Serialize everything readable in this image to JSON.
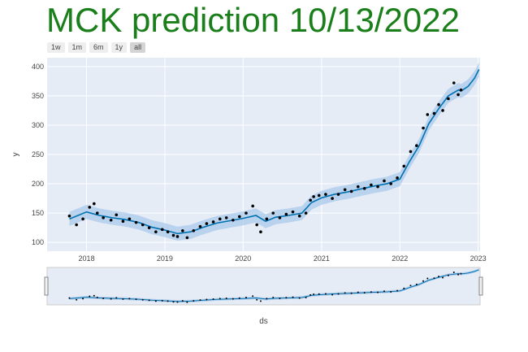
{
  "title": "MCK prediction 10/13/2022",
  "range_buttons": [
    {
      "label": "1w",
      "active": false
    },
    {
      "label": "1m",
      "active": false
    },
    {
      "label": "6m",
      "active": false
    },
    {
      "label": "1y",
      "active": false
    },
    {
      "label": "all",
      "active": true
    }
  ],
  "colors": {
    "title": "#1a7f1a",
    "plot_bg": "#e5ecf6",
    "forecast_line": "#0072B2",
    "uncertainty_band": "#a7c8ea",
    "observed_points": "#000000"
  },
  "chart_data": {
    "type": "scatter",
    "xlabel": "ds",
    "ylabel": "y",
    "xlim": [
      "2017-07-01",
      "2023-01-10"
    ],
    "ylim": [
      85,
      415
    ],
    "x_ticks": [
      "2018",
      "2019",
      "2020",
      "2021",
      "2022",
      "2023"
    ],
    "y_ticks": [
      100,
      150,
      200,
      250,
      300,
      350,
      400
    ],
    "grid": true,
    "range_slider": true,
    "series": [
      {
        "role": "observed",
        "x": [
          "2017-10-13",
          "2017-11-15",
          "2017-12-15",
          "2018-01-15",
          "2018-02-05",
          "2018-02-20",
          "2018-03-20",
          "2018-04-25",
          "2018-05-20",
          "2018-06-20",
          "2018-07-20",
          "2018-08-20",
          "2018-09-20",
          "2018-10-20",
          "2018-11-20",
          "2018-12-20",
          "2019-01-15",
          "2019-02-10",
          "2019-03-01",
          "2019-03-25",
          "2019-04-15",
          "2019-05-15",
          "2019-06-15",
          "2019-07-15",
          "2019-08-15",
          "2019-09-15",
          "2019-10-15",
          "2019-11-15",
          "2019-12-15",
          "2020-01-15",
          "2020-02-15",
          "2020-03-05",
          "2020-03-23",
          "2020-04-20",
          "2020-05-20",
          "2020-06-20",
          "2020-07-20",
          "2020-08-20",
          "2020-09-20",
          "2020-10-20",
          "2020-11-10",
          "2020-11-25",
          "2020-12-20",
          "2021-01-20",
          "2021-02-20",
          "2021-03-20",
          "2021-04-20",
          "2021-05-20",
          "2021-06-20",
          "2021-07-20",
          "2021-08-20",
          "2021-09-20",
          "2021-10-20",
          "2021-11-20",
          "2021-12-20",
          "2022-01-20",
          "2022-02-20",
          "2022-03-20",
          "2022-04-20",
          "2022-05-10",
          "2022-06-10",
          "2022-07-01",
          "2022-07-20",
          "2022-08-15",
          "2022-09-10",
          "2022-09-30",
          "2022-10-13"
        ],
        "y": [
          145,
          130,
          140,
          160,
          166,
          150,
          142,
          138,
          147,
          136,
          140,
          134,
          130,
          125,
          118,
          122,
          118,
          112,
          110,
          120,
          108,
          120,
          127,
          132,
          135,
          140,
          142,
          138,
          144,
          150,
          162,
          130,
          118,
          140,
          150,
          142,
          148,
          152,
          145,
          150,
          172,
          178,
          180,
          182,
          175,
          182,
          190,
          187,
          195,
          192,
          198,
          195,
          205,
          200,
          210,
          230,
          255,
          265,
          295,
          318,
          320,
          335,
          325,
          345,
          372,
          352,
          360
        ]
      },
      {
        "role": "forecast",
        "x": [
          "2017-10-13",
          "2018-01-01",
          "2018-03-01",
          "2018-05-01",
          "2018-07-01",
          "2018-09-01",
          "2018-11-01",
          "2019-01-01",
          "2019-03-01",
          "2019-05-01",
          "2019-07-01",
          "2019-09-01",
          "2019-11-01",
          "2020-01-01",
          "2020-03-01",
          "2020-04-15",
          "2020-06-01",
          "2020-08-01",
          "2020-10-01",
          "2020-11-15",
          "2021-01-01",
          "2021-03-01",
          "2021-05-01",
          "2021-07-01",
          "2021-09-01",
          "2021-11-01",
          "2022-01-01",
          "2022-02-15",
          "2022-04-01",
          "2022-05-15",
          "2022-07-01",
          "2022-08-15",
          "2022-10-01",
          "2022-10-13",
          "2022-11-15",
          "2022-12-15",
          "2023-01-05"
        ],
        "y": [
          140,
          152,
          146,
          142,
          139,
          134,
          126,
          121,
          115,
          118,
          126,
          133,
          137,
          141,
          146,
          136,
          143,
          146,
          150,
          168,
          176,
          182,
          186,
          191,
          196,
          200,
          208,
          238,
          265,
          302,
          328,
          350,
          360,
          358,
          366,
          380,
          395
        ],
        "upper": [
          152,
          164,
          158,
          154,
          151,
          146,
          138,
          133,
          127,
          130,
          138,
          145,
          149,
          153,
          158,
          148,
          155,
          158,
          162,
          180,
          188,
          194,
          198,
          203,
          208,
          212,
          220,
          250,
          277,
          314,
          340,
          362,
          372,
          370,
          378,
          392,
          407
        ],
        "lower": [
          128,
          140,
          134,
          130,
          127,
          122,
          114,
          109,
          103,
          106,
          114,
          121,
          125,
          129,
          134,
          124,
          131,
          134,
          138,
          156,
          164,
          170,
          174,
          179,
          184,
          188,
          196,
          226,
          253,
          290,
          316,
          338,
          348,
          346,
          354,
          368,
          383
        ]
      }
    ]
  }
}
